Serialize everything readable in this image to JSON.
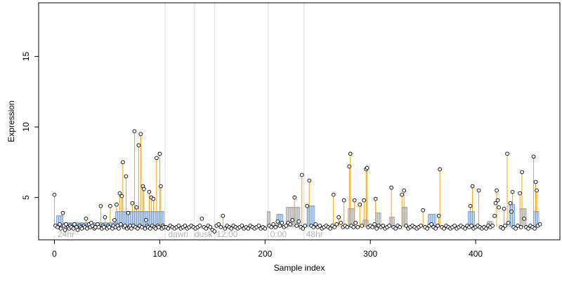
{
  "chart_data": {
    "type": "scatter",
    "title": "",
    "xlabel": "Sample index",
    "ylabel": "Expression",
    "xlim": [
      -15,
      480
    ],
    "ylim": [
      2.0,
      18.8
    ],
    "x_ticks": [
      0,
      100,
      200,
      300,
      400
    ],
    "y_ticks": [
      5,
      10,
      15
    ],
    "grid": false,
    "dividers": [
      105,
      133,
      152,
      203,
      237
    ],
    "region_labels": [
      {
        "text": "24hr",
        "x": 3
      },
      {
        "text": "dawn",
        "x": 108
      },
      {
        "text": "dusk",
        "x": 133
      },
      {
        "text": "12:00",
        "x": 154
      },
      {
        "text": "0:00",
        "x": 205
      },
      {
        "text": "48hr",
        "x": 239
      }
    ],
    "baseline": 2.9,
    "colors": {
      "axis": "#000000",
      "divider": "#d9d9d9",
      "region_label": "#b3b3b3",
      "stem": "#f5a300",
      "group_bar_blue": "#6fa0e0",
      "group_bar_gray": "#a0a0a0",
      "point_fill": "#ffffff",
      "point_stroke": "#000000"
    },
    "group_bars": [
      {
        "x0": 2,
        "x1": 8,
        "y": 3.7,
        "color": "blue"
      },
      {
        "x0": 8,
        "x1": 60,
        "y": 3.2,
        "color": "blue"
      },
      {
        "x0": 58,
        "x1": 104,
        "y": 4.0,
        "color": "blue"
      },
      {
        "x0": 202,
        "x1": 205,
        "y": 4.0,
        "color": "gray"
      },
      {
        "x0": 211,
        "x1": 217,
        "y": 3.8,
        "color": "blue"
      },
      {
        "x0": 220,
        "x1": 233,
        "y": 4.3,
        "color": "gray"
      },
      {
        "x0": 240,
        "x1": 247,
        "y": 4.4,
        "color": "blue"
      },
      {
        "x0": 279,
        "x1": 285,
        "y": 4.2,
        "color": "gray"
      },
      {
        "x0": 293,
        "x1": 298,
        "y": 3.4,
        "color": "gray"
      },
      {
        "x0": 305,
        "x1": 310,
        "y": 3.9,
        "color": "gray"
      },
      {
        "x0": 318,
        "x1": 323,
        "y": 3.6,
        "color": "gray"
      },
      {
        "x0": 330,
        "x1": 335,
        "y": 4.3,
        "color": "gray"
      },
      {
        "x0": 355,
        "x1": 362,
        "y": 3.8,
        "color": "blue"
      },
      {
        "x0": 393,
        "x1": 399,
        "y": 4.0,
        "color": "blue"
      },
      {
        "x0": 411,
        "x1": 416,
        "y": 3.3,
        "color": "gray"
      },
      {
        "x0": 432,
        "x1": 437,
        "y": 4.5,
        "color": "blue"
      },
      {
        "x0": 442,
        "x1": 448,
        "y": 4.2,
        "color": "gray"
      },
      {
        "x0": 455,
        "x1": 460,
        "y": 4.0,
        "color": "blue"
      }
    ],
    "spikes": [
      [
        0,
        5.2
      ],
      [
        8,
        3.9
      ],
      [
        30,
        3.5
      ],
      [
        35,
        3.2
      ],
      [
        44,
        4.4
      ],
      [
        48,
        3.6
      ],
      [
        53,
        4.4
      ],
      [
        57,
        3.4
      ],
      [
        59,
        4.5
      ],
      [
        62,
        5.3
      ],
      [
        64,
        5.1
      ],
      [
        65,
        7.5
      ],
      [
        68,
        6.5
      ],
      [
        70,
        3.9
      ],
      [
        74,
        4.6
      ],
      [
        76,
        9.7
      ],
      [
        78,
        4.3
      ],
      [
        80,
        8.7
      ],
      [
        82,
        9.5
      ],
      [
        84,
        5.8
      ],
      [
        85,
        5.6
      ],
      [
        87,
        3.4
      ],
      [
        90,
        5.4
      ],
      [
        92,
        5.0
      ],
      [
        94,
        4.9
      ],
      [
        97,
        7.8
      ],
      [
        100,
        8.1
      ],
      [
        101,
        5.8
      ],
      [
        160,
        3.7
      ],
      [
        240,
        4.4
      ],
      [
        242,
        6.2
      ],
      [
        235,
        6.6
      ],
      [
        228,
        5.0
      ],
      [
        265,
        5.2
      ],
      [
        270,
        3.6
      ],
      [
        275,
        4.8
      ],
      [
        280,
        7.2
      ],
      [
        281,
        8.1
      ],
      [
        285,
        4.8
      ],
      [
        290,
        4.5
      ],
      [
        294,
        4.8
      ],
      [
        296,
        7.0
      ],
      [
        297,
        7.1
      ],
      [
        305,
        4.9
      ],
      [
        320,
        5.7
      ],
      [
        330,
        5.2
      ],
      [
        332,
        5.5
      ],
      [
        350,
        4.1
      ],
      [
        365,
        3.7
      ],
      [
        366,
        7.0
      ],
      [
        395,
        4.4
      ],
      [
        397,
        5.8
      ],
      [
        403,
        5.5
      ],
      [
        420,
        5.5
      ],
      [
        427,
        4.2
      ],
      [
        430,
        8.1
      ],
      [
        433,
        4.6
      ],
      [
        435,
        5.4
      ],
      [
        442,
        5.3
      ],
      [
        444,
        6.8
      ],
      [
        455,
        7.9
      ],
      [
        457,
        6.1
      ],
      [
        458,
        5.5
      ]
    ],
    "baseline_points": [
      [
        1,
        3.0
      ],
      [
        3,
        2.9
      ],
      [
        5,
        3.1
      ],
      [
        6,
        2.8
      ],
      [
        9,
        3.0
      ],
      [
        10,
        2.7
      ],
      [
        11,
        3.1
      ],
      [
        13,
        2.9
      ],
      [
        14,
        2.8
      ],
      [
        15,
        3.0
      ],
      [
        16,
        2.9
      ],
      [
        18,
        2.8
      ],
      [
        19,
        3.1
      ],
      [
        21,
        2.9
      ],
      [
        22,
        2.7
      ],
      [
        24,
        3.0
      ],
      [
        25,
        2.9
      ],
      [
        26,
        2.8
      ],
      [
        28,
        3.0
      ],
      [
        29,
        2.9
      ],
      [
        31,
        2.8
      ],
      [
        33,
        3.1
      ],
      [
        34,
        2.9
      ],
      [
        36,
        3.0
      ],
      [
        38,
        2.8
      ],
      [
        39,
        2.9
      ],
      [
        41,
        3.1
      ],
      [
        42,
        2.9
      ],
      [
        45,
        2.8
      ],
      [
        46,
        3.0
      ],
      [
        47,
        2.9
      ],
      [
        50,
        2.8
      ],
      [
        51,
        3.0
      ],
      [
        52,
        2.9
      ],
      [
        55,
        2.8
      ],
      [
        56,
        3.0
      ],
      [
        58,
        2.9
      ],
      [
        60,
        3.0
      ],
      [
        61,
        2.8
      ],
      [
        63,
        3.1
      ],
      [
        66,
        2.9
      ],
      [
        67,
        3.0
      ],
      [
        69,
        2.8
      ],
      [
        71,
        2.9
      ],
      [
        72,
        3.0
      ],
      [
        73,
        2.8
      ],
      [
        75,
        3.0
      ],
      [
        77,
        2.9
      ],
      [
        79,
        2.8
      ],
      [
        81,
        3.0
      ],
      [
        83,
        2.9
      ],
      [
        86,
        2.8
      ],
      [
        88,
        3.0
      ],
      [
        89,
        2.9
      ],
      [
        91,
        2.8
      ],
      [
        93,
        3.0
      ],
      [
        95,
        2.9
      ],
      [
        96,
        2.8
      ],
      [
        98,
        3.0
      ],
      [
        99,
        2.9
      ],
      [
        102,
        2.8
      ],
      [
        103,
        3.0
      ],
      [
        104,
        2.9
      ],
      [
        106,
        2.9
      ],
      [
        108,
        2.8
      ],
      [
        110,
        3.0
      ],
      [
        112,
        2.9
      ],
      [
        114,
        2.8
      ],
      [
        116,
        2.9
      ],
      [
        118,
        3.0
      ],
      [
        120,
        2.8
      ],
      [
        122,
        2.9
      ],
      [
        124,
        3.0
      ],
      [
        126,
        2.8
      ],
      [
        128,
        2.9
      ],
      [
        130,
        3.0
      ],
      [
        132,
        2.9
      ],
      [
        134,
        2.8
      ],
      [
        136,
        2.9
      ],
      [
        138,
        3.0
      ],
      [
        140,
        3.5
      ],
      [
        142,
        2.9
      ],
      [
        144,
        2.8
      ],
      [
        146,
        3.0
      ],
      [
        148,
        2.9
      ],
      [
        150,
        2.7
      ],
      [
        152,
        2.6
      ],
      [
        154,
        3.0
      ],
      [
        156,
        3.1
      ],
      [
        158,
        2.9
      ],
      [
        162,
        2.8
      ],
      [
        164,
        3.0
      ],
      [
        166,
        2.9
      ],
      [
        168,
        2.8
      ],
      [
        170,
        3.0
      ],
      [
        172,
        2.9
      ],
      [
        174,
        2.8
      ],
      [
        176,
        2.9
      ],
      [
        178,
        3.0
      ],
      [
        180,
        2.8
      ],
      [
        182,
        2.9
      ],
      [
        184,
        2.8
      ],
      [
        186,
        3.0
      ],
      [
        188,
        2.9
      ],
      [
        190,
        2.8
      ],
      [
        192,
        2.9
      ],
      [
        194,
        3.0
      ],
      [
        196,
        2.8
      ],
      [
        198,
        2.9
      ],
      [
        200,
        2.8
      ],
      [
        204,
        3.0
      ],
      [
        206,
        2.9
      ],
      [
        208,
        3.1
      ],
      [
        210,
        2.9
      ],
      [
        212,
        3.3
      ],
      [
        214,
        3.0
      ],
      [
        216,
        3.2
      ],
      [
        218,
        2.9
      ],
      [
        220,
        3.0
      ],
      [
        222,
        3.2
      ],
      [
        224,
        3.1
      ],
      [
        226,
        3.4
      ],
      [
        230,
        3.0
      ],
      [
        232,
        3.3
      ],
      [
        234,
        2.9
      ],
      [
        236,
        2.8
      ],
      [
        238,
        3.0
      ],
      [
        244,
        3.0
      ],
      [
        246,
        2.9
      ],
      [
        248,
        3.1
      ],
      [
        250,
        2.9
      ],
      [
        252,
        3.0
      ],
      [
        254,
        2.8
      ],
      [
        256,
        2.9
      ],
      [
        258,
        3.0
      ],
      [
        260,
        2.9
      ],
      [
        262,
        2.8
      ],
      [
        264,
        3.0
      ],
      [
        266,
        2.9
      ],
      [
        268,
        3.1
      ],
      [
        272,
        3.2
      ],
      [
        274,
        2.9
      ],
      [
        276,
        3.0
      ],
      [
        278,
        2.9
      ],
      [
        282,
        3.0
      ],
      [
        284,
        2.9
      ],
      [
        286,
        3.2
      ],
      [
        288,
        2.9
      ],
      [
        292,
        3.0
      ],
      [
        298,
        2.9
      ],
      [
        300,
        3.0
      ],
      [
        302,
        2.9
      ],
      [
        304,
        3.1
      ],
      [
        306,
        2.8
      ],
      [
        308,
        3.0
      ],
      [
        310,
        2.9
      ],
      [
        312,
        3.0
      ],
      [
        314,
        2.8
      ],
      [
        316,
        2.9
      ],
      [
        318,
        3.0
      ],
      [
        322,
        2.9
      ],
      [
        324,
        2.8
      ],
      [
        326,
        3.0
      ],
      [
        328,
        2.9
      ],
      [
        334,
        3.0
      ],
      [
        336,
        2.8
      ],
      [
        338,
        2.9
      ],
      [
        340,
        3.0
      ],
      [
        342,
        2.9
      ],
      [
        344,
        2.8
      ],
      [
        346,
        2.9
      ],
      [
        348,
        3.0
      ],
      [
        352,
        2.9
      ],
      [
        354,
        2.8
      ],
      [
        356,
        3.0
      ],
      [
        358,
        3.1
      ],
      [
        360,
        2.9
      ],
      [
        362,
        2.8
      ],
      [
        364,
        3.0
      ],
      [
        368,
        2.9
      ],
      [
        370,
        2.8
      ],
      [
        372,
        3.0
      ],
      [
        374,
        2.9
      ],
      [
        376,
        2.8
      ],
      [
        378,
        2.9
      ],
      [
        380,
        3.0
      ],
      [
        382,
        2.8
      ],
      [
        384,
        2.9
      ],
      [
        386,
        3.0
      ],
      [
        388,
        2.9
      ],
      [
        390,
        2.8
      ],
      [
        392,
        3.0
      ],
      [
        394,
        2.9
      ],
      [
        396,
        3.0
      ],
      [
        398,
        2.8
      ],
      [
        400,
        2.9
      ],
      [
        402,
        3.0
      ],
      [
        404,
        2.9
      ],
      [
        406,
        2.8
      ],
      [
        408,
        2.9
      ],
      [
        410,
        2.8
      ],
      [
        412,
        3.0
      ],
      [
        414,
        2.9
      ],
      [
        416,
        3.0
      ],
      [
        418,
        3.7
      ],
      [
        419,
        4.6
      ],
      [
        421,
        4.8
      ],
      [
        422,
        4.3
      ],
      [
        424,
        2.9
      ],
      [
        426,
        2.8
      ],
      [
        428,
        3.0
      ],
      [
        431,
        3.2
      ],
      [
        434,
        4.0
      ],
      [
        436,
        2.9
      ],
      [
        438,
        2.8
      ],
      [
        440,
        3.0
      ],
      [
        443,
        2.9
      ],
      [
        446,
        3.5
      ],
      [
        448,
        2.9
      ],
      [
        450,
        2.8
      ],
      [
        452,
        3.0
      ],
      [
        454,
        2.9
      ],
      [
        456,
        2.8
      ],
      [
        459,
        3.0
      ],
      [
        461,
        3.1
      ]
    ]
  }
}
